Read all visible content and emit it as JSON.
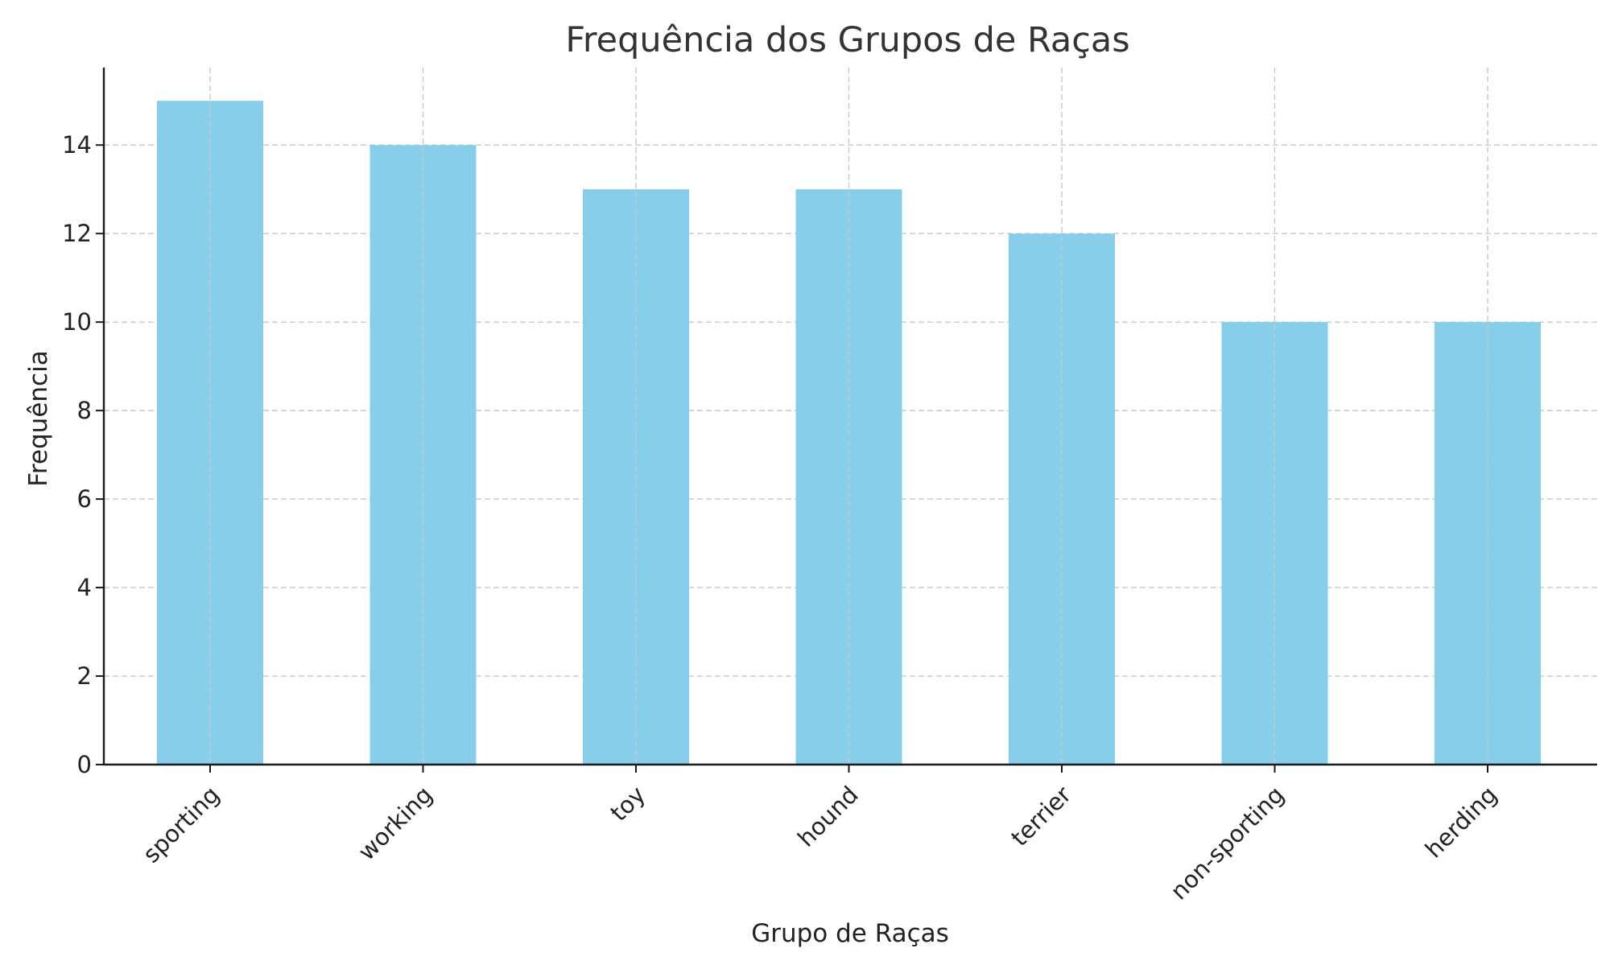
{
  "chart_data": {
    "type": "bar",
    "title": "Frequência dos Grupos de Raças",
    "xlabel": "Grupo de Raças",
    "ylabel": "Frequência",
    "categories": [
      "sporting",
      "working",
      "toy",
      "hound",
      "terrier",
      "non-sporting",
      "herding"
    ],
    "values": [
      15,
      14,
      13,
      13,
      12,
      10,
      10
    ],
    "ylim": [
      0,
      15.75
    ],
    "yticks": [
      "0",
      "2",
      "4",
      "6",
      "8",
      "10",
      "12",
      "14"
    ],
    "grid": true,
    "legend": "none",
    "bar_color": "#87ceeb"
  }
}
